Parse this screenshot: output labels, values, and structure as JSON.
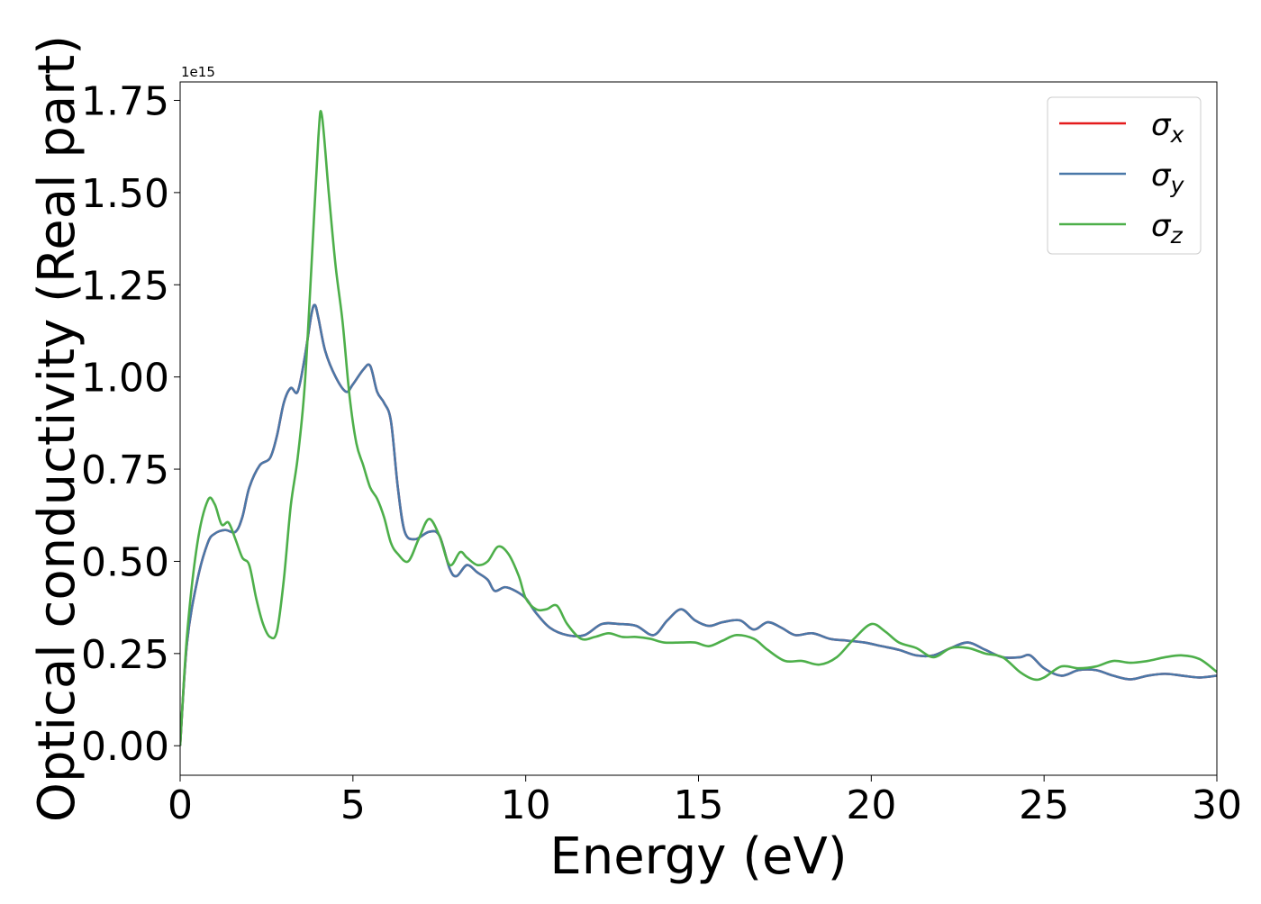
{
  "chart_data": {
    "type": "line",
    "title": "",
    "xlabel": "Energy (eV)",
    "ylabel": "Optical conductivity (Real part)",
    "y_offset_label": "1e15",
    "xlim": [
      0,
      30
    ],
    "ylim": [
      -0.08,
      1.8
    ],
    "x_ticks": [
      0,
      5,
      10,
      15,
      20,
      25,
      30
    ],
    "x_tick_labels": [
      "0",
      "5",
      "10",
      "15",
      "20",
      "25",
      "30"
    ],
    "y_ticks": [
      0,
      0.25,
      0.5,
      0.75,
      1.0,
      1.25,
      1.5,
      1.75
    ],
    "y_tick_labels": [
      "0.00",
      "0.25",
      "0.50",
      "0.75",
      "1.00",
      "1.25",
      "1.50",
      "1.75"
    ],
    "grid": false,
    "legend_position": "top-right",
    "series": [
      {
        "name": "σ",
        "subscript": "x",
        "color": "#e41a1c",
        "points": [
          [
            0,
            0
          ],
          [
            0.2,
            0.28
          ],
          [
            0.5,
            0.45
          ],
          [
            0.8,
            0.55
          ],
          [
            1.0,
            0.575
          ],
          [
            1.3,
            0.585
          ],
          [
            1.6,
            0.58
          ],
          [
            1.8,
            0.62
          ],
          [
            2.0,
            0.7
          ],
          [
            2.3,
            0.76
          ],
          [
            2.6,
            0.78
          ],
          [
            2.8,
            0.84
          ],
          [
            3.0,
            0.93
          ],
          [
            3.2,
            0.97
          ],
          [
            3.4,
            0.96
          ],
          [
            3.6,
            1.05
          ],
          [
            3.8,
            1.17
          ],
          [
            3.9,
            1.195
          ],
          [
            4.0,
            1.16
          ],
          [
            4.2,
            1.07
          ],
          [
            4.5,
            1.0
          ],
          [
            4.8,
            0.96
          ],
          [
            5.0,
            0.98
          ],
          [
            5.3,
            1.02
          ],
          [
            5.5,
            1.03
          ],
          [
            5.7,
            0.96
          ],
          [
            5.9,
            0.93
          ],
          [
            6.1,
            0.88
          ],
          [
            6.3,
            0.7
          ],
          [
            6.5,
            0.58
          ],
          [
            6.8,
            0.56
          ],
          [
            7.2,
            0.58
          ],
          [
            7.5,
            0.57
          ],
          [
            7.8,
            0.48
          ],
          [
            8.0,
            0.46
          ],
          [
            8.3,
            0.49
          ],
          [
            8.6,
            0.47
          ],
          [
            8.9,
            0.45
          ],
          [
            9.1,
            0.42
          ],
          [
            9.4,
            0.43
          ],
          [
            9.7,
            0.42
          ],
          [
            10.0,
            0.4
          ],
          [
            10.3,
            0.36
          ],
          [
            10.7,
            0.32
          ],
          [
            11.2,
            0.3
          ],
          [
            11.7,
            0.3
          ],
          [
            12.2,
            0.33
          ],
          [
            12.7,
            0.33
          ],
          [
            13.2,
            0.325
          ],
          [
            13.7,
            0.3
          ],
          [
            14.1,
            0.34
          ],
          [
            14.5,
            0.37
          ],
          [
            14.9,
            0.34
          ],
          [
            15.3,
            0.325
          ],
          [
            15.7,
            0.335
          ],
          [
            16.2,
            0.34
          ],
          [
            16.6,
            0.315
          ],
          [
            17.0,
            0.335
          ],
          [
            17.4,
            0.32
          ],
          [
            17.8,
            0.3
          ],
          [
            18.3,
            0.305
          ],
          [
            18.8,
            0.29
          ],
          [
            19.3,
            0.285
          ],
          [
            19.8,
            0.28
          ],
          [
            20.3,
            0.27
          ],
          [
            20.8,
            0.26
          ],
          [
            21.3,
            0.245
          ],
          [
            21.8,
            0.245
          ],
          [
            22.3,
            0.265
          ],
          [
            22.8,
            0.28
          ],
          [
            23.3,
            0.26
          ],
          [
            23.8,
            0.24
          ],
          [
            24.3,
            0.24
          ],
          [
            24.6,
            0.245
          ],
          [
            25.0,
            0.21
          ],
          [
            25.5,
            0.19
          ],
          [
            26.0,
            0.205
          ],
          [
            26.5,
            0.205
          ],
          [
            27.0,
            0.19
          ],
          [
            27.5,
            0.18
          ],
          [
            28.0,
            0.19
          ],
          [
            28.5,
            0.195
          ],
          [
            29.0,
            0.19
          ],
          [
            29.5,
            0.185
          ],
          [
            30.0,
            0.19
          ]
        ]
      },
      {
        "name": "σ",
        "subscript": "y",
        "color": "#4a78a8",
        "points": [
          [
            0,
            0
          ],
          [
            0.2,
            0.28
          ],
          [
            0.5,
            0.45
          ],
          [
            0.8,
            0.55
          ],
          [
            1.0,
            0.575
          ],
          [
            1.3,
            0.585
          ],
          [
            1.6,
            0.58
          ],
          [
            1.8,
            0.62
          ],
          [
            2.0,
            0.7
          ],
          [
            2.3,
            0.76
          ],
          [
            2.6,
            0.78
          ],
          [
            2.8,
            0.84
          ],
          [
            3.0,
            0.93
          ],
          [
            3.2,
            0.97
          ],
          [
            3.4,
            0.96
          ],
          [
            3.6,
            1.05
          ],
          [
            3.8,
            1.17
          ],
          [
            3.9,
            1.195
          ],
          [
            4.0,
            1.16
          ],
          [
            4.2,
            1.07
          ],
          [
            4.5,
            1.0
          ],
          [
            4.8,
            0.96
          ],
          [
            5.0,
            0.98
          ],
          [
            5.3,
            1.02
          ],
          [
            5.5,
            1.03
          ],
          [
            5.7,
            0.96
          ],
          [
            5.9,
            0.93
          ],
          [
            6.1,
            0.88
          ],
          [
            6.3,
            0.7
          ],
          [
            6.5,
            0.58
          ],
          [
            6.8,
            0.56
          ],
          [
            7.2,
            0.58
          ],
          [
            7.5,
            0.57
          ],
          [
            7.8,
            0.48
          ],
          [
            8.0,
            0.46
          ],
          [
            8.3,
            0.49
          ],
          [
            8.6,
            0.47
          ],
          [
            8.9,
            0.45
          ],
          [
            9.1,
            0.42
          ],
          [
            9.4,
            0.43
          ],
          [
            9.7,
            0.42
          ],
          [
            10.0,
            0.4
          ],
          [
            10.3,
            0.36
          ],
          [
            10.7,
            0.32
          ],
          [
            11.2,
            0.3
          ],
          [
            11.7,
            0.3
          ],
          [
            12.2,
            0.33
          ],
          [
            12.7,
            0.33
          ],
          [
            13.2,
            0.325
          ],
          [
            13.7,
            0.3
          ],
          [
            14.1,
            0.34
          ],
          [
            14.5,
            0.37
          ],
          [
            14.9,
            0.34
          ],
          [
            15.3,
            0.325
          ],
          [
            15.7,
            0.335
          ],
          [
            16.2,
            0.34
          ],
          [
            16.6,
            0.315
          ],
          [
            17.0,
            0.335
          ],
          [
            17.4,
            0.32
          ],
          [
            17.8,
            0.3
          ],
          [
            18.3,
            0.305
          ],
          [
            18.8,
            0.29
          ],
          [
            19.3,
            0.285
          ],
          [
            19.8,
            0.28
          ],
          [
            20.3,
            0.27
          ],
          [
            20.8,
            0.26
          ],
          [
            21.3,
            0.245
          ],
          [
            21.8,
            0.245
          ],
          [
            22.3,
            0.265
          ],
          [
            22.8,
            0.28
          ],
          [
            23.3,
            0.26
          ],
          [
            23.8,
            0.24
          ],
          [
            24.3,
            0.24
          ],
          [
            24.6,
            0.245
          ],
          [
            25.0,
            0.21
          ],
          [
            25.5,
            0.19
          ],
          [
            26.0,
            0.205
          ],
          [
            26.5,
            0.205
          ],
          [
            27.0,
            0.19
          ],
          [
            27.5,
            0.18
          ],
          [
            28.0,
            0.19
          ],
          [
            28.5,
            0.195
          ],
          [
            29.0,
            0.19
          ],
          [
            29.5,
            0.185
          ],
          [
            30.0,
            0.19
          ]
        ]
      },
      {
        "name": "σ",
        "subscript": "z",
        "color": "#4daf4a",
        "points": [
          [
            0,
            0
          ],
          [
            0.2,
            0.3
          ],
          [
            0.5,
            0.55
          ],
          [
            0.8,
            0.665
          ],
          [
            1.0,
            0.655
          ],
          [
            1.2,
            0.6
          ],
          [
            1.4,
            0.605
          ],
          [
            1.6,
            0.56
          ],
          [
            1.8,
            0.51
          ],
          [
            2.0,
            0.49
          ],
          [
            2.2,
            0.4
          ],
          [
            2.4,
            0.33
          ],
          [
            2.6,
            0.295
          ],
          [
            2.8,
            0.31
          ],
          [
            3.0,
            0.45
          ],
          [
            3.2,
            0.65
          ],
          [
            3.4,
            0.78
          ],
          [
            3.6,
            0.97
          ],
          [
            3.8,
            1.3
          ],
          [
            4.0,
            1.65
          ],
          [
            4.1,
            1.71
          ],
          [
            4.3,
            1.5
          ],
          [
            4.5,
            1.3
          ],
          [
            4.7,
            1.15
          ],
          [
            4.9,
            0.95
          ],
          [
            5.1,
            0.82
          ],
          [
            5.3,
            0.76
          ],
          [
            5.5,
            0.7
          ],
          [
            5.7,
            0.67
          ],
          [
            5.9,
            0.62
          ],
          [
            6.1,
            0.55
          ],
          [
            6.3,
            0.52
          ],
          [
            6.6,
            0.5
          ],
          [
            6.9,
            0.56
          ],
          [
            7.2,
            0.615
          ],
          [
            7.5,
            0.57
          ],
          [
            7.8,
            0.49
          ],
          [
            8.1,
            0.525
          ],
          [
            8.3,
            0.51
          ],
          [
            8.6,
            0.49
          ],
          [
            8.9,
            0.5
          ],
          [
            9.2,
            0.54
          ],
          [
            9.5,
            0.52
          ],
          [
            9.8,
            0.46
          ],
          [
            10.0,
            0.4
          ],
          [
            10.3,
            0.37
          ],
          [
            10.6,
            0.37
          ],
          [
            10.9,
            0.38
          ],
          [
            11.2,
            0.33
          ],
          [
            11.6,
            0.29
          ],
          [
            12.0,
            0.295
          ],
          [
            12.4,
            0.305
          ],
          [
            12.8,
            0.295
          ],
          [
            13.2,
            0.295
          ],
          [
            13.6,
            0.29
          ],
          [
            14.0,
            0.28
          ],
          [
            14.5,
            0.28
          ],
          [
            14.9,
            0.28
          ],
          [
            15.3,
            0.27
          ],
          [
            15.7,
            0.285
          ],
          [
            16.1,
            0.3
          ],
          [
            16.6,
            0.29
          ],
          [
            17.0,
            0.26
          ],
          [
            17.5,
            0.23
          ],
          [
            18.0,
            0.23
          ],
          [
            18.5,
            0.22
          ],
          [
            19.0,
            0.24
          ],
          [
            19.5,
            0.29
          ],
          [
            20.0,
            0.33
          ],
          [
            20.4,
            0.31
          ],
          [
            20.8,
            0.28
          ],
          [
            21.3,
            0.265
          ],
          [
            21.8,
            0.24
          ],
          [
            22.3,
            0.265
          ],
          [
            22.8,
            0.265
          ],
          [
            23.3,
            0.25
          ],
          [
            23.8,
            0.24
          ],
          [
            24.3,
            0.2
          ],
          [
            24.7,
            0.18
          ],
          [
            25.0,
            0.185
          ],
          [
            25.5,
            0.215
          ],
          [
            26.0,
            0.21
          ],
          [
            26.5,
            0.215
          ],
          [
            27.0,
            0.23
          ],
          [
            27.5,
            0.225
          ],
          [
            28.0,
            0.23
          ],
          [
            28.5,
            0.24
          ],
          [
            29.0,
            0.245
          ],
          [
            29.5,
            0.235
          ],
          [
            30.0,
            0.2
          ]
        ]
      }
    ]
  }
}
